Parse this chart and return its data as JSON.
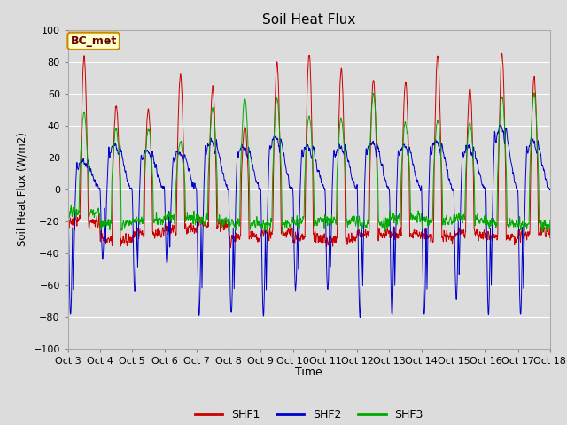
{
  "title": "Soil Heat Flux",
  "ylabel": "Soil Heat Flux (W/m2)",
  "xlabel": "Time",
  "ylim": [
    -100,
    100
  ],
  "yticks": [
    -100,
    -80,
    -60,
    -40,
    -20,
    0,
    20,
    40,
    60,
    80,
    100
  ],
  "plot_bg_color": "#dcdcdc",
  "grid_color": "#ffffff",
  "series_colors": [
    "#cc0000",
    "#0000cc",
    "#00aa00"
  ],
  "series_names": [
    "SHF1",
    "SHF2",
    "SHF3"
  ],
  "annotation_text": "BC_met",
  "annotation_bg": "#ffffcc",
  "annotation_border": "#cc8800",
  "n_days": 15,
  "points_per_day": 144,
  "start_day": 3,
  "seed": 17
}
